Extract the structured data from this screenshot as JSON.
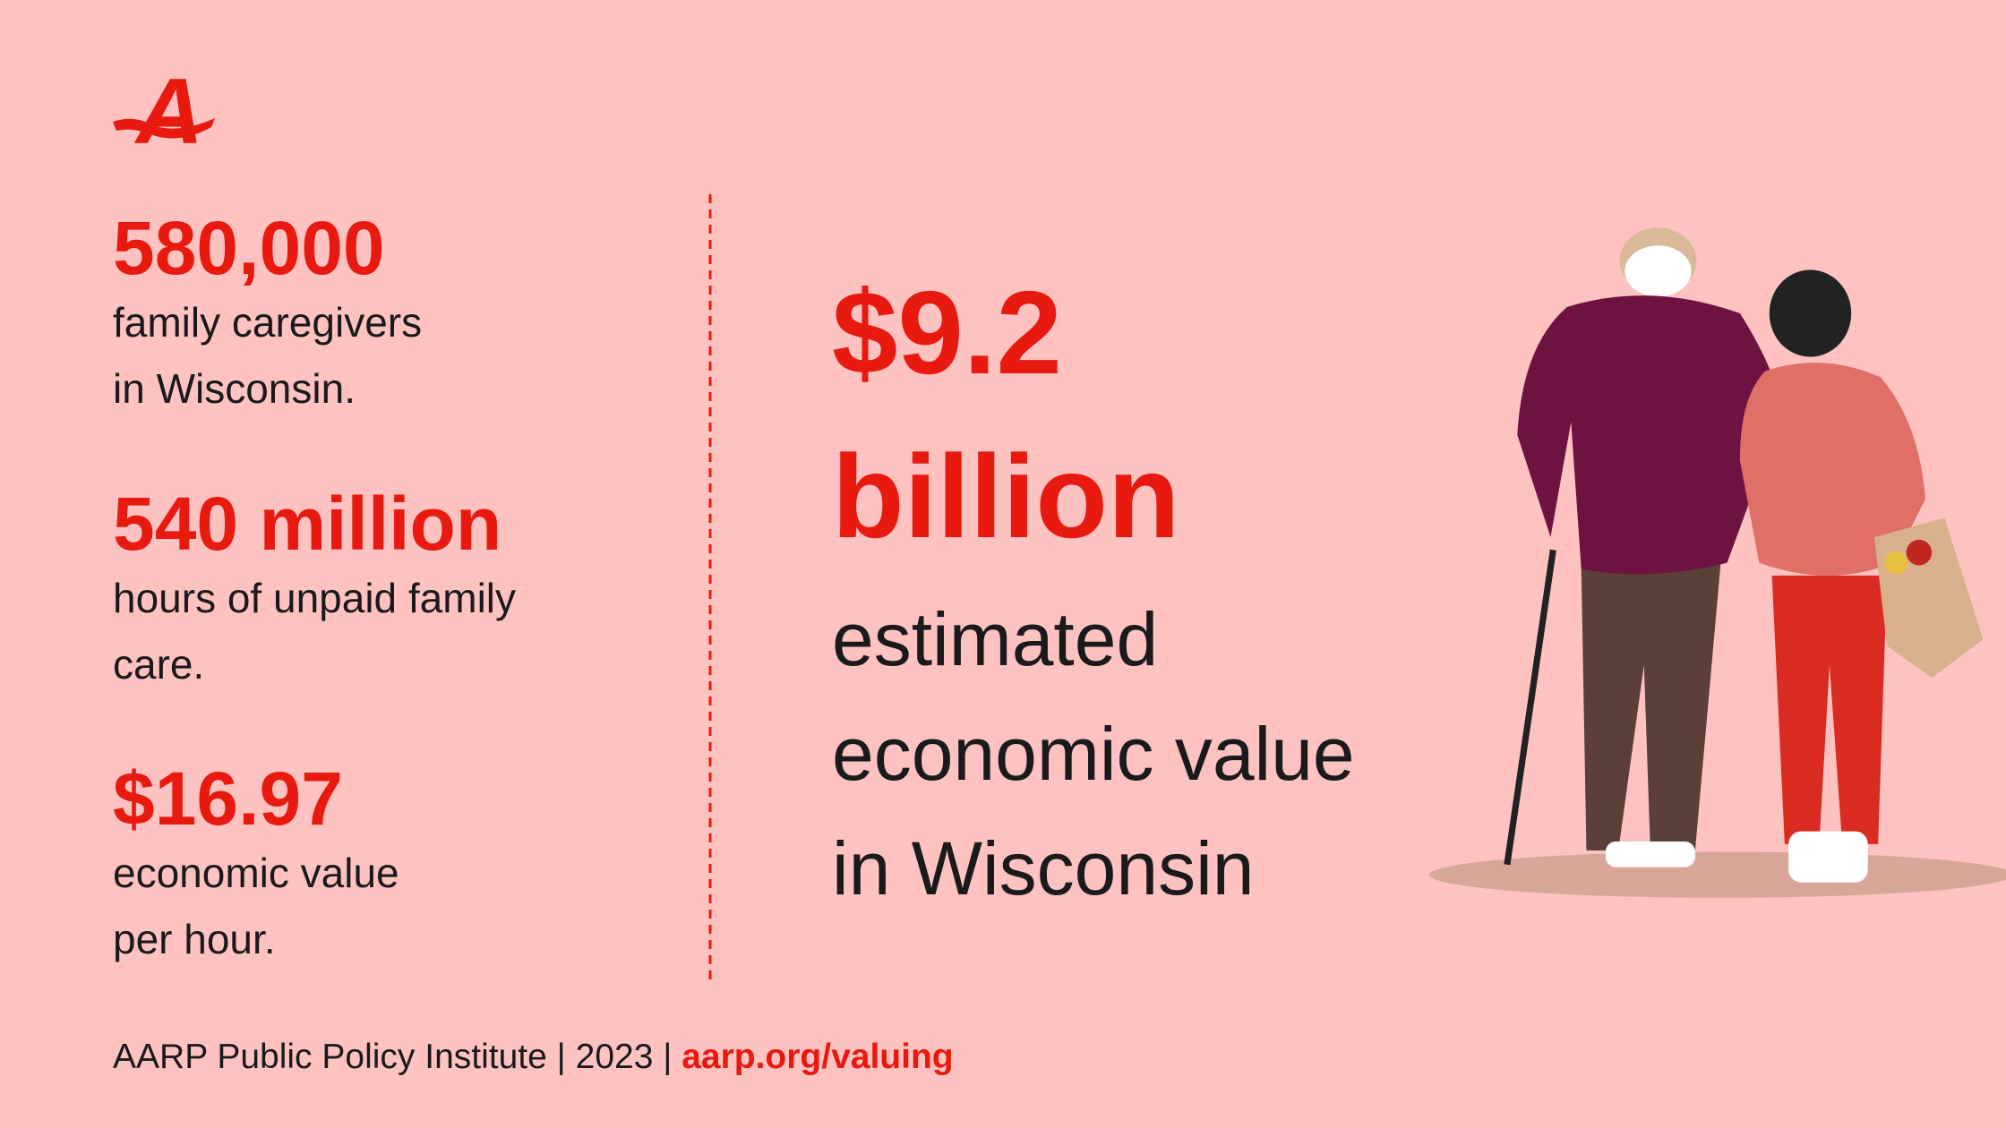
{
  "brand": {
    "logo": "A"
  },
  "stats": [
    {
      "value": "580,000",
      "description": [
        "family caregivers",
        "in Wisconsin."
      ]
    },
    {
      "value": "540 million",
      "description": [
        "hours of unpaid family",
        "care."
      ]
    },
    {
      "value": "$16.97",
      "description": [
        "economic value",
        "per hour."
      ]
    }
  ],
  "headline": {
    "value": [
      "$9.2",
      "billion"
    ],
    "description": [
      "estimated",
      "economic value",
      "in Wisconsin"
    ]
  },
  "footer": {
    "source": "AARP Public Policy Institute | 2023 | ",
    "link": "aarp.org/valuing"
  }
}
